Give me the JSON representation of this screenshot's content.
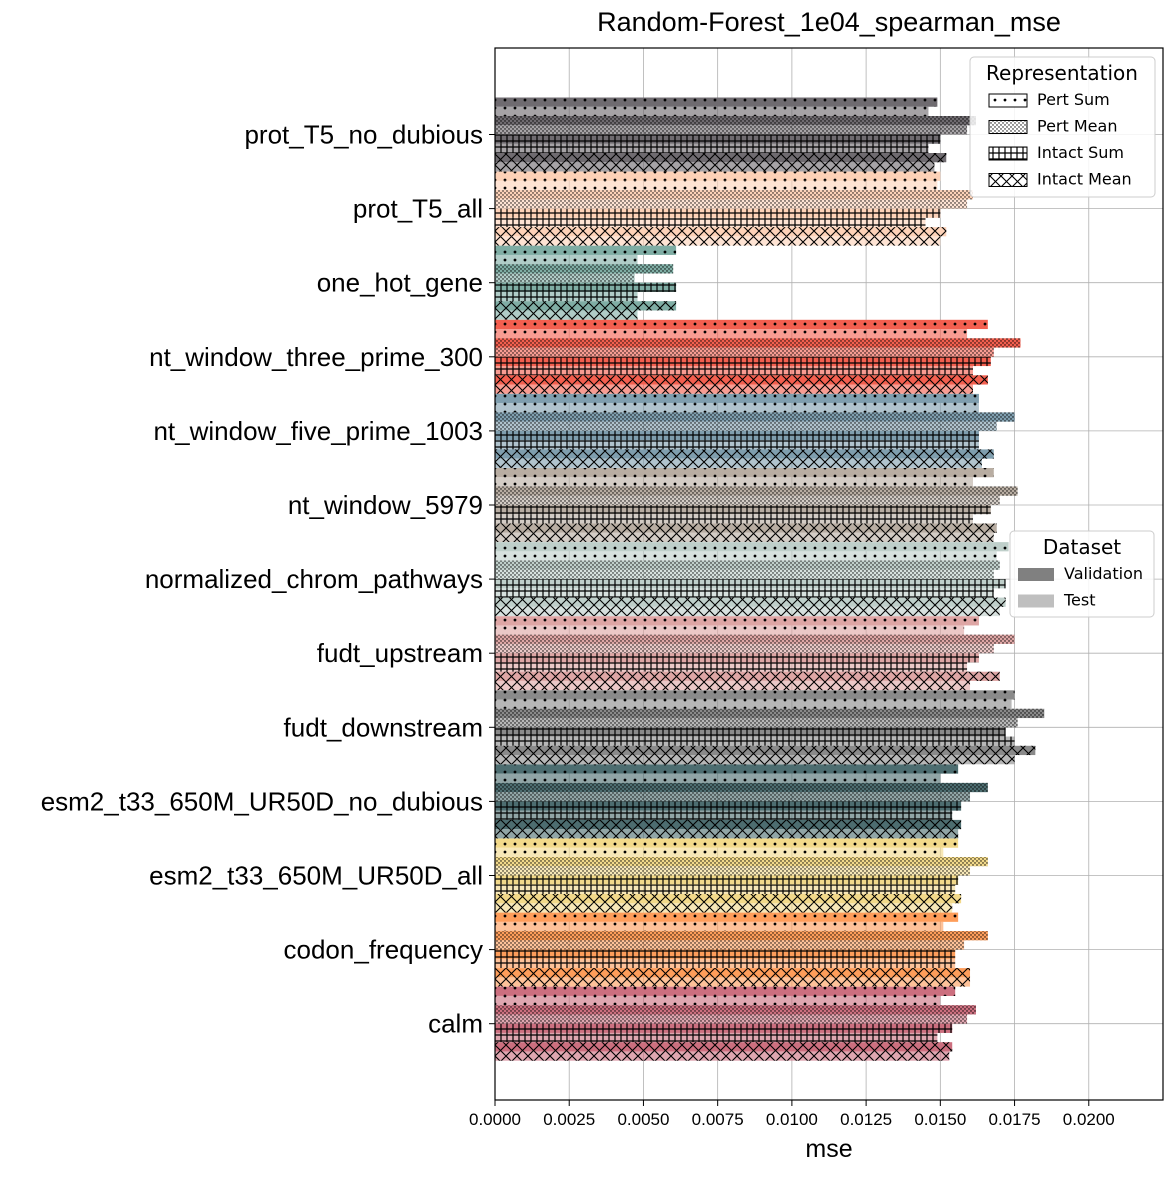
{
  "chart_data": {
    "type": "bar",
    "orientation": "horizontal",
    "title": "Random-Forest_1e04_spearman_mse",
    "xlabel": "mse",
    "ylabel": "",
    "xlim": [
      0,
      0.0225
    ],
    "x_ticks": [
      "0.0000",
      "0.0025",
      "0.0050",
      "0.0075",
      "0.0100",
      "0.0125",
      "0.0150",
      "0.0175",
      "0.0200"
    ],
    "x_tick_values": [
      0,
      0.0025,
      0.005,
      0.0075,
      0.01,
      0.0125,
      0.015,
      0.0175,
      0.02
    ],
    "grid": true,
    "categories": [
      "prot_T5_no_dubious",
      "prot_T5_all",
      "one_hot_gene",
      "nt_window_three_prime_300",
      "nt_window_five_prime_1003",
      "nt_window_5979",
      "normalized_chrom_pathways",
      "fudt_upstream",
      "fudt_downstream",
      "esm2_t33_650M_UR50D_no_dubious",
      "esm2_t33_650M_UR50D_all",
      "codon_frequency",
      "calm"
    ],
    "category_colors": [
      "#6f6b70",
      "#fdd2b8",
      "#7fada4",
      "#f35f4f",
      "#7f9eae",
      "#b8ada2",
      "#bfcfca",
      "#dea6a5",
      "#8a8a8a",
      "#4d6d70",
      "#f2d98a",
      "#fe9d5a",
      "#cc6f7f"
    ],
    "series": [
      {
        "name": "Pert Sum",
        "dataset": "Validation",
        "values": [
          0.0149,
          0.015,
          0.0061,
          0.0166,
          0.0163,
          0.0168,
          0.0173,
          0.0163,
          0.0175,
          0.0156,
          0.0156,
          0.0156,
          0.0155
        ]
      },
      {
        "name": "Pert Sum",
        "dataset": "Test",
        "values": [
          0.0146,
          0.0149,
          0.0048,
          0.0159,
          0.0163,
          0.0161,
          0.0169,
          0.0158,
          0.0174,
          0.015,
          0.0151,
          0.0151,
          0.015
        ]
      },
      {
        "name": "Pert Mean",
        "dataset": "Validation",
        "values": [
          0.0162,
          0.0161,
          0.006,
          0.0177,
          0.0175,
          0.0176,
          0.017,
          0.0175,
          0.0185,
          0.0166,
          0.0166,
          0.0166,
          0.0162
        ]
      },
      {
        "name": "Pert Mean",
        "dataset": "Test",
        "values": [
          0.0159,
          0.0159,
          0.0047,
          0.0168,
          0.0169,
          0.017,
          0.0168,
          0.0168,
          0.0176,
          0.016,
          0.016,
          0.0158,
          0.0159
        ]
      },
      {
        "name": "Intact Sum",
        "dataset": "Validation",
        "values": [
          0.015,
          0.015,
          0.0061,
          0.0167,
          0.0163,
          0.0167,
          0.0172,
          0.0163,
          0.0172,
          0.0157,
          0.0156,
          0.0155,
          0.0154
        ]
      },
      {
        "name": "Intact Sum",
        "dataset": "Test",
        "values": [
          0.0146,
          0.0145,
          0.0048,
          0.0161,
          0.0163,
          0.0161,
          0.0168,
          0.0159,
          0.0175,
          0.0154,
          0.0155,
          0.0155,
          0.0149
        ]
      },
      {
        "name": "Intact Mean",
        "dataset": "Validation",
        "values": [
          0.0152,
          0.0152,
          0.0061,
          0.0166,
          0.0168,
          0.0169,
          0.0172,
          0.017,
          0.0182,
          0.0157,
          0.0157,
          0.016,
          0.0154
        ]
      },
      {
        "name": "Intact Mean",
        "dataset": "Test",
        "values": [
          0.0148,
          0.015,
          0.0048,
          0.0161,
          0.0164,
          0.0168,
          0.017,
          0.016,
          0.0175,
          0.0156,
          0.0154,
          0.016,
          0.0153
        ]
      }
    ],
    "legends": [
      {
        "title": "Representation",
        "placement": "top-right",
        "entries": [
          {
            "label": "Pert Sum",
            "hatch": "dots"
          },
          {
            "label": "Pert Mean",
            "hatch": "fine-dots"
          },
          {
            "label": "Intact Sum",
            "hatch": "grid"
          },
          {
            "label": "Intact Mean",
            "hatch": "cross"
          }
        ]
      },
      {
        "title": "Dataset",
        "placement": "center-right",
        "entries": [
          {
            "label": "Validation",
            "color": "#808080"
          },
          {
            "label": "Test",
            "color": "#bfbfbf"
          }
        ]
      }
    ]
  }
}
